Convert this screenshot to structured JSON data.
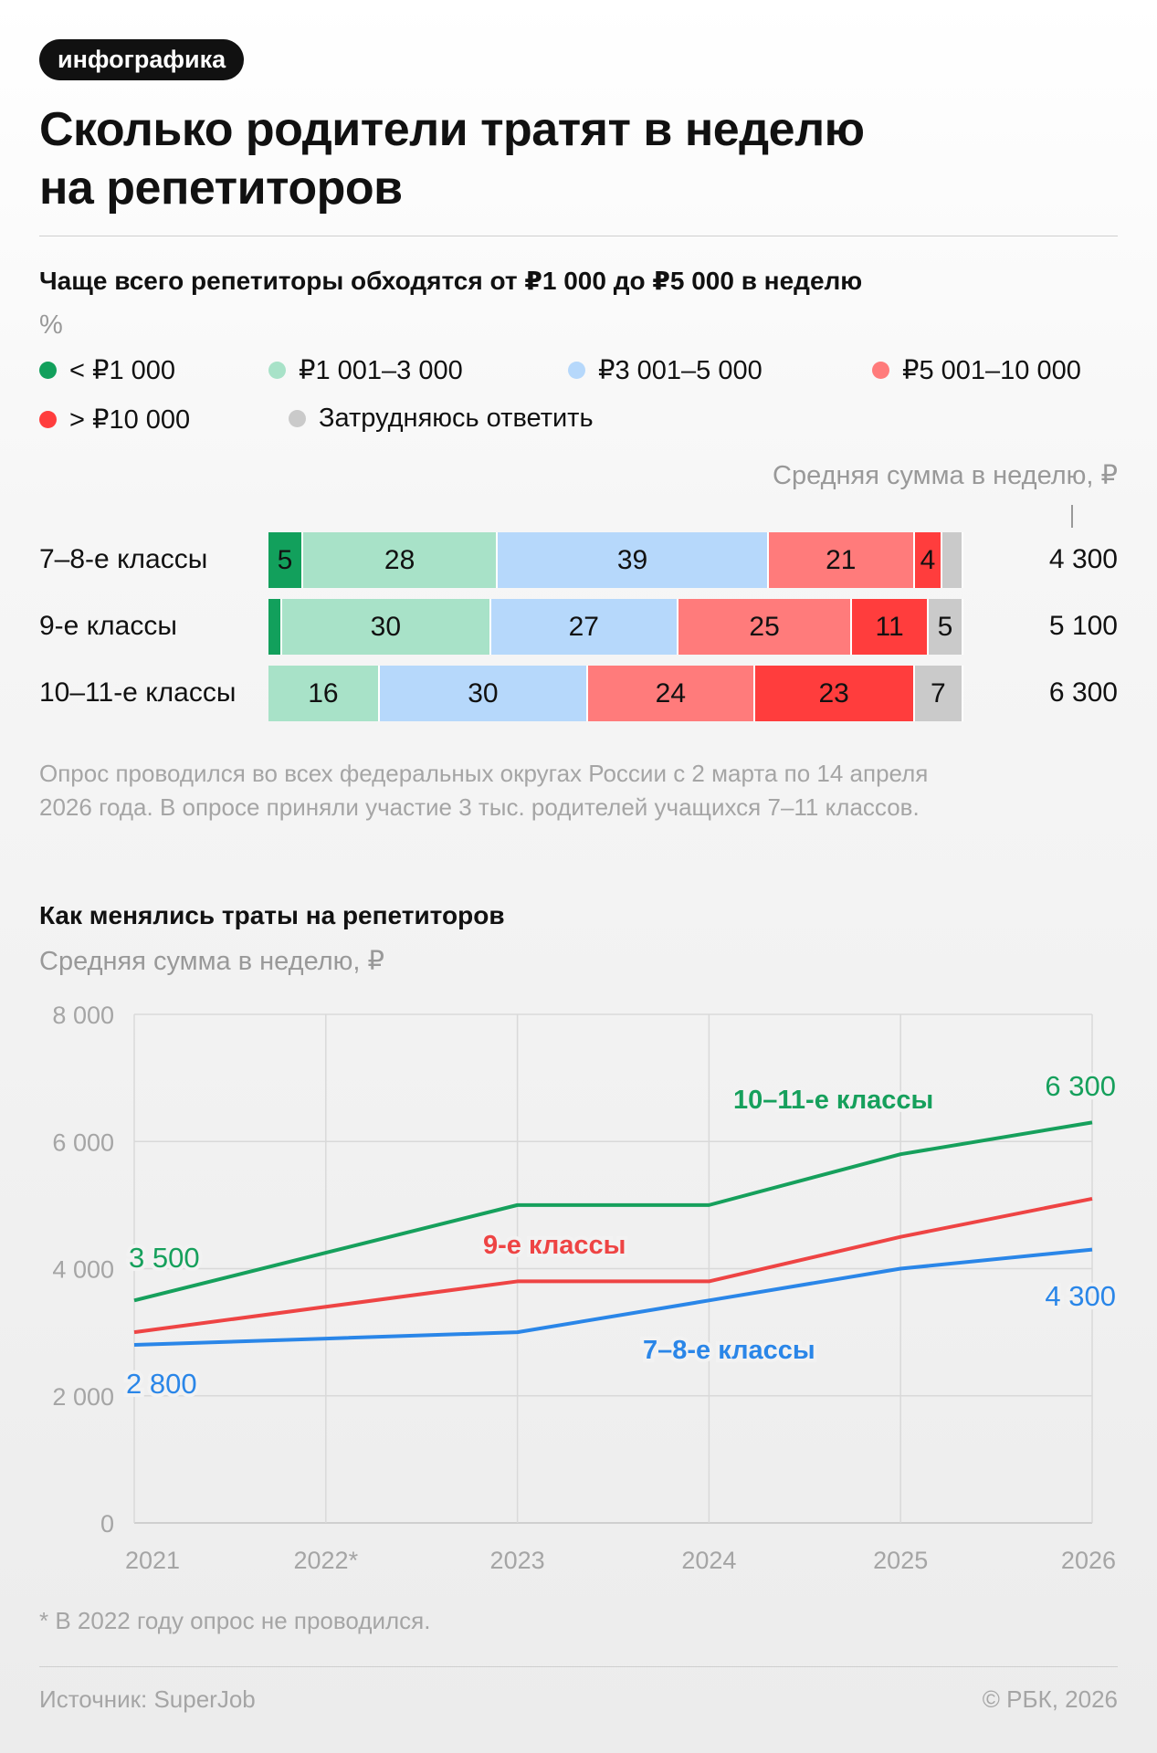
{
  "badge": "инфографика",
  "title": [
    "Сколько родители тратят в неделю",
    "на репетиторов"
  ],
  "bar_section": {
    "subtitle": "Чаще всего репетиторы обходятся от ₽1 000 до ₽5 000 в неделю",
    "unit": "%",
    "avg_label": "Средняя сумма в неделю, ₽",
    "note": [
      "Опрос проводился во всех федеральных округах России с 2 марта по 14 апреля",
      "2026 года. В опросе приняли участие 3 тыс. родителей учащихся 7–11 классов."
    ]
  },
  "line_section": {
    "title": "Как менялись траты на репетиторов",
    "subtitle": "Средняя сумма в неделю, ₽",
    "footnote": "* В 2022 году опрос не проводился."
  },
  "footer": {
    "source": "Источник: SuperJob",
    "copyright": "© РБК, 2026"
  },
  "chart_data": [
    {
      "type": "bar",
      "stacked": true,
      "orientation": "horizontal",
      "title": "Чаще всего репетиторы обходятся от ₽1 000 до ₽5 000 в неделю",
      "unit": "%",
      "legend": [
        {
          "name": "< ₽1 000",
          "color": "#12a05c"
        },
        {
          "name": "₽1 001–3 000",
          "color": "#a8e2c8"
        },
        {
          "name": "₽3 001–5 000",
          "color": "#b6d8fb"
        },
        {
          "name": "₽5 001–10 000",
          "color": "#ff7b7b"
        },
        {
          "name": "> ₽10 000",
          "color": "#ff3d3d"
        },
        {
          "name": "Затрудняюсь ответить",
          "color": "#cacaca"
        }
      ],
      "categories": [
        "7–8-е классы",
        "9-е классы",
        "10–11-е классы"
      ],
      "rows": [
        {
          "values": [
            5,
            28,
            39,
            21,
            4,
            3
          ],
          "labels": [
            "5",
            "28",
            "39",
            "21",
            "4",
            ""
          ],
          "avg": "4 300"
        },
        {
          "values": [
            2,
            30,
            27,
            25,
            11,
            5
          ],
          "labels": [
            "",
            "30",
            "27",
            "25",
            "11",
            "5"
          ],
          "avg": "5 100"
        },
        {
          "values": [
            0,
            16,
            30,
            24,
            23,
            7
          ],
          "labels": [
            "",
            "16",
            "30",
            "24",
            "23",
            "7"
          ],
          "avg": "6 300"
        }
      ]
    },
    {
      "type": "line",
      "title": "Как менялись траты на репетиторов",
      "ylabel": "Средняя сумма в неделю, ₽",
      "x": [
        "2021",
        "2022*",
        "2023",
        "2024",
        "2025",
        "2026"
      ],
      "ylim": [
        0,
        8000
      ],
      "yticks": [
        0,
        2000,
        4000,
        6000,
        8000
      ],
      "ytick_labels": [
        "0",
        "2 000",
        "4 000",
        "6 000",
        "8 000"
      ],
      "grid": true,
      "series": [
        {
          "name": "10–11-е классы",
          "color": "#16a05c",
          "values": [
            3500,
            4250,
            5000,
            5000,
            5800,
            6300
          ],
          "start_label": "3 500",
          "end_label": "6 300"
        },
        {
          "name": "9-е классы",
          "color": "#ee4444",
          "values": [
            3000,
            3400,
            3800,
            3800,
            4500,
            5100
          ]
        },
        {
          "name": "7–8-е классы",
          "color": "#2a86e8",
          "values": [
            2800,
            2900,
            3000,
            3500,
            4000,
            4300
          ],
          "start_label": "2 800",
          "end_label": "4 300"
        }
      ]
    }
  ]
}
